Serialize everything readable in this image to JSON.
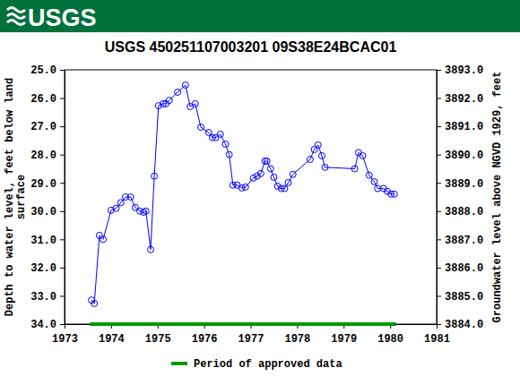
{
  "header": {
    "logo_text": "USGS"
  },
  "chart_data": {
    "type": "line",
    "title": "USGS 450251107003201 09S38E24BCAC01",
    "y_label": "Depth to water level, feet below land surface",
    "y2_label": "Groundwater level above NGVD 1929, feet",
    "xlim": [
      1973,
      1981
    ],
    "xticks": [
      1973,
      1974,
      1975,
      1976,
      1977,
      1978,
      1979,
      1980,
      1981
    ],
    "ylim": [
      34,
      25
    ],
    "yticks": [
      {
        "value": 25,
        "label": "25.0"
      },
      {
        "value": 26,
        "label": "26.0"
      },
      {
        "value": 27,
        "label": "27.0"
      },
      {
        "value": 28,
        "label": "28.0"
      },
      {
        "value": 29,
        "label": "29.0"
      },
      {
        "value": 30,
        "label": "30.0"
      },
      {
        "value": 31,
        "label": "31.0"
      },
      {
        "value": 32,
        "label": "32.0"
      },
      {
        "value": 33,
        "label": "33.0"
      },
      {
        "value": 34,
        "label": "34.0"
      }
    ],
    "y2lim": [
      3884,
      3893
    ],
    "y2ticks": [
      {
        "value": 3884,
        "label": "3884.0"
      },
      {
        "value": 3885,
        "label": "3885.0"
      },
      {
        "value": 3886,
        "label": "3886.0"
      },
      {
        "value": 3887,
        "label": "3887.0"
      },
      {
        "value": 3888,
        "label": "3888.0"
      },
      {
        "value": 3889,
        "label": "3889.0"
      },
      {
        "value": 3890,
        "label": "3890.0"
      },
      {
        "value": 3891,
        "label": "3891.0"
      },
      {
        "value": 3892,
        "label": "3892.0"
      },
      {
        "value": 3893,
        "label": "3893.0"
      }
    ],
    "legend": "bottom",
    "series": [
      {
        "color": "#0000ff",
        "marker": "circle",
        "line_style": "solid",
        "x": [
          1973.58,
          1973.64,
          1973.75,
          1973.83,
          1974.0,
          1974.11,
          1974.21,
          1974.31,
          1974.42,
          1974.52,
          1974.62,
          1974.7,
          1974.75,
          1974.85,
          1974.93,
          1975.02,
          1975.12,
          1975.18,
          1975.25,
          1975.43,
          1975.6,
          1975.7,
          1975.81,
          1975.93,
          1976.1,
          1976.18,
          1976.25,
          1976.35,
          1976.46,
          1976.54,
          1976.62,
          1976.71,
          1976.81,
          1976.89,
          1977.06,
          1977.14,
          1977.22,
          1977.31,
          1977.35,
          1977.43,
          1977.5,
          1977.58,
          1977.66,
          1977.73,
          1977.81,
          1977.91,
          1978.28,
          1978.37,
          1978.45,
          1978.53,
          1978.6,
          1979.24,
          1979.32,
          1979.41,
          1979.55,
          1979.66,
          1979.73,
          1979.86,
          1979.94,
          1980.02,
          1980.09
        ],
        "values": [
          33.15,
          33.27,
          30.86,
          31.0,
          29.97,
          29.9,
          29.7,
          29.5,
          29.5,
          29.87,
          30.0,
          30.04,
          30.0,
          31.36,
          28.76,
          26.27,
          26.2,
          26.2,
          26.08,
          25.79,
          25.54,
          26.3,
          26.2,
          27.03,
          27.22,
          27.4,
          27.4,
          27.28,
          27.63,
          28.0,
          29.08,
          29.08,
          29.18,
          29.15,
          28.83,
          28.76,
          28.67,
          28.23,
          28.23,
          28.5,
          28.8,
          29.12,
          29.2,
          29.2,
          28.99,
          28.7,
          28.17,
          27.82,
          27.66,
          28.04,
          28.45,
          28.5,
          27.93,
          28.04,
          28.73,
          28.96,
          29.2,
          29.2,
          29.3,
          29.4,
          29.4
        ]
      },
      {
        "name": "Period of approved data",
        "color": "#009900",
        "marker": "none",
        "line_style": "solid",
        "x": [
          1973.55,
          1980.13
        ],
        "values": [
          34,
          34
        ]
      }
    ]
  }
}
